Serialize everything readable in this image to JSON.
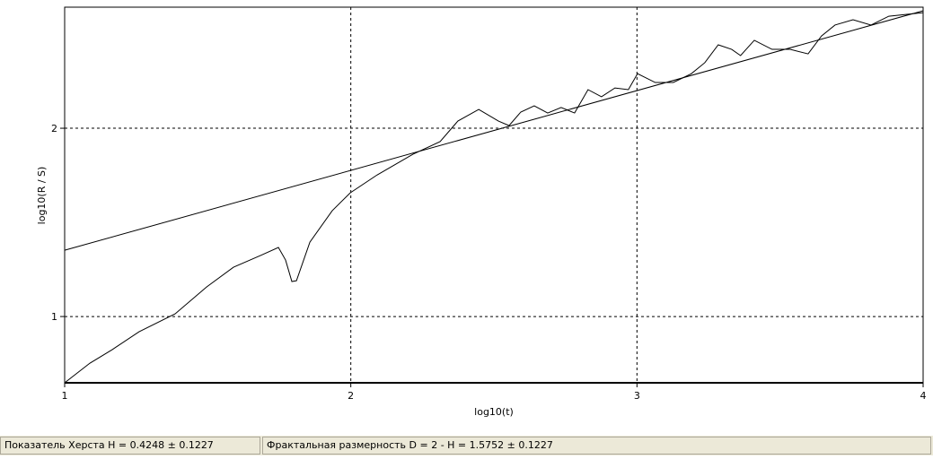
{
  "chart_data": {
    "type": "line",
    "x_label": "log10(t)",
    "y_label": "log10(R / S)",
    "xlim": [
      1,
      4
    ],
    "xticks": [
      1,
      2,
      3,
      4
    ],
    "ylim": [
      0.648,
      2.643
    ],
    "yticks": [
      1,
      2
    ],
    "grid": true,
    "series": [
      {
        "color": "#000000",
        "x": [
          1,
          1.088,
          1.166,
          1.26,
          1.386,
          1.496,
          1.59,
          1.684,
          1.747,
          1.772,
          1.794,
          1.81,
          1.857,
          1.935,
          1.998,
          2.092,
          2.217,
          2.312,
          2.374,
          2.447,
          2.516,
          2.553,
          2.594,
          2.641,
          2.688,
          2.735,
          2.782,
          2.829,
          2.876,
          2.923,
          2.97,
          3.002,
          3.064,
          3.127,
          3.19,
          3.237,
          3.284,
          3.331,
          3.362,
          3.41,
          3.472,
          3.535,
          3.598,
          3.645,
          3.692,
          3.755,
          3.818,
          3.88,
          3.943,
          4
        ],
        "values": [
          0.648,
          0.752,
          0.824,
          0.919,
          1.014,
          1.157,
          1.262,
          1.324,
          1.367,
          1.3,
          1.186,
          1.19,
          1.395,
          1.562,
          1.657,
          1.752,
          1.862,
          1.929,
          2.038,
          2.1,
          2.038,
          2.014,
          2.086,
          2.119,
          2.081,
          2.11,
          2.081,
          2.205,
          2.167,
          2.214,
          2.205,
          2.29,
          2.243,
          2.243,
          2.29,
          2.348,
          2.443,
          2.419,
          2.386,
          2.467,
          2.419,
          2.419,
          2.395,
          2.49,
          2.548,
          2.576,
          2.548,
          2.595,
          2.605,
          2.614
        ]
      },
      {
        "color": "#000000",
        "x": [
          1,
          4
        ],
        "values": [
          1.352,
          2.624
        ]
      }
    ]
  },
  "status_bar": [
    "Показатель Херста H = 0.4248 ± 0.1227",
    "Фрактальная размерность D = 2 - H = 1.5752 ± 0.1227"
  ]
}
